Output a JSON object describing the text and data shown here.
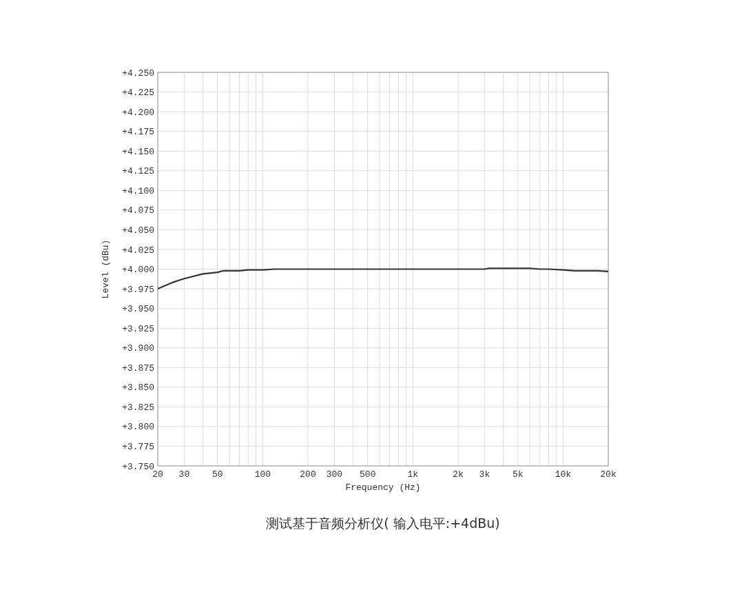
{
  "chart_data": {
    "type": "line",
    "xlabel": "Frequency (Hz)",
    "ylabel": "Level (dBu)",
    "annotations": [
      "测试基于音频分析仪( 输入电平:+4dBu)"
    ],
    "log": "x",
    "grid": true,
    "marker": "none",
    "line_style": "solid",
    "xlim": [
      20,
      20000
    ],
    "ylim": [
      3.75,
      4.25
    ],
    "xticks": [
      20,
      30,
      {
        "value": 40,
        "label": null
      },
      50,
      {
        "value": 60,
        "label": null
      },
      {
        "value": 70,
        "label": null
      },
      {
        "value": 80,
        "label": null
      },
      {
        "value": 90,
        "label": null
      },
      100,
      200,
      300,
      {
        "value": 400,
        "label": null
      },
      500,
      {
        "value": 600,
        "label": null
      },
      {
        "value": 700,
        "label": null
      },
      {
        "value": 800,
        "label": null
      },
      {
        "value": 900,
        "label": null
      },
      {
        "value": 1000,
        "label": "1k"
      },
      {
        "value": 2000,
        "label": "2k"
      },
      {
        "value": 3000,
        "label": "3k"
      },
      {
        "value": 4000,
        "label": null
      },
      {
        "value": 5000,
        "label": "5k"
      },
      {
        "value": 6000,
        "label": null
      },
      {
        "value": 7000,
        "label": null
      },
      {
        "value": 8000,
        "label": null
      },
      {
        "value": 9000,
        "label": null
      },
      {
        "value": 10000,
        "label": "10k"
      },
      {
        "value": 20000,
        "label": "20k"
      }
    ],
    "yticks": [
      {
        "value": 3.75,
        "label": "+3.750"
      },
      {
        "value": 3.775,
        "label": "+3.775"
      },
      {
        "value": 3.8,
        "label": "+3.800"
      },
      {
        "value": 3.825,
        "label": "+3.825"
      },
      {
        "value": 3.85,
        "label": "+3.850"
      },
      {
        "value": 3.875,
        "label": "+3.875"
      },
      {
        "value": 3.9,
        "label": "+3.900"
      },
      {
        "value": 3.925,
        "label": "+3.925"
      },
      {
        "value": 3.95,
        "label": "+3.950"
      },
      {
        "value": 3.975,
        "label": "+3.975"
      },
      {
        "value": 4.0,
        "label": "+4.000"
      },
      {
        "value": 4.025,
        "label": "+4.025"
      },
      {
        "value": 4.05,
        "label": "+4.050"
      },
      {
        "value": 4.075,
        "label": "+4.075"
      },
      {
        "value": 4.1,
        "label": "+4.100"
      },
      {
        "value": 4.125,
        "label": "+4.125"
      },
      {
        "value": 4.15,
        "label": "+4.150"
      },
      {
        "value": 4.175,
        "label": "+4.175"
      },
      {
        "value": 4.2,
        "label": "+4.200"
      },
      {
        "value": 4.225,
        "label": "+4.225"
      },
      {
        "value": 4.25,
        "label": "+4.250"
      }
    ],
    "x": [
      20,
      25,
      30,
      40,
      50,
      55,
      70,
      80,
      100,
      120,
      3000,
      3200,
      6000,
      7000,
      8000,
      10000,
      12000,
      17000,
      20000
    ],
    "series": [
      {
        "color": "#333333",
        "values": [
          3.975,
          3.983,
          3.988,
          3.994,
          3.996,
          3.998,
          3.998,
          3.999,
          3.999,
          4.0,
          4.0,
          4.001,
          4.001,
          4.0,
          4.0,
          3.999,
          3.998,
          3.998,
          3.997
        ]
      }
    ]
  }
}
